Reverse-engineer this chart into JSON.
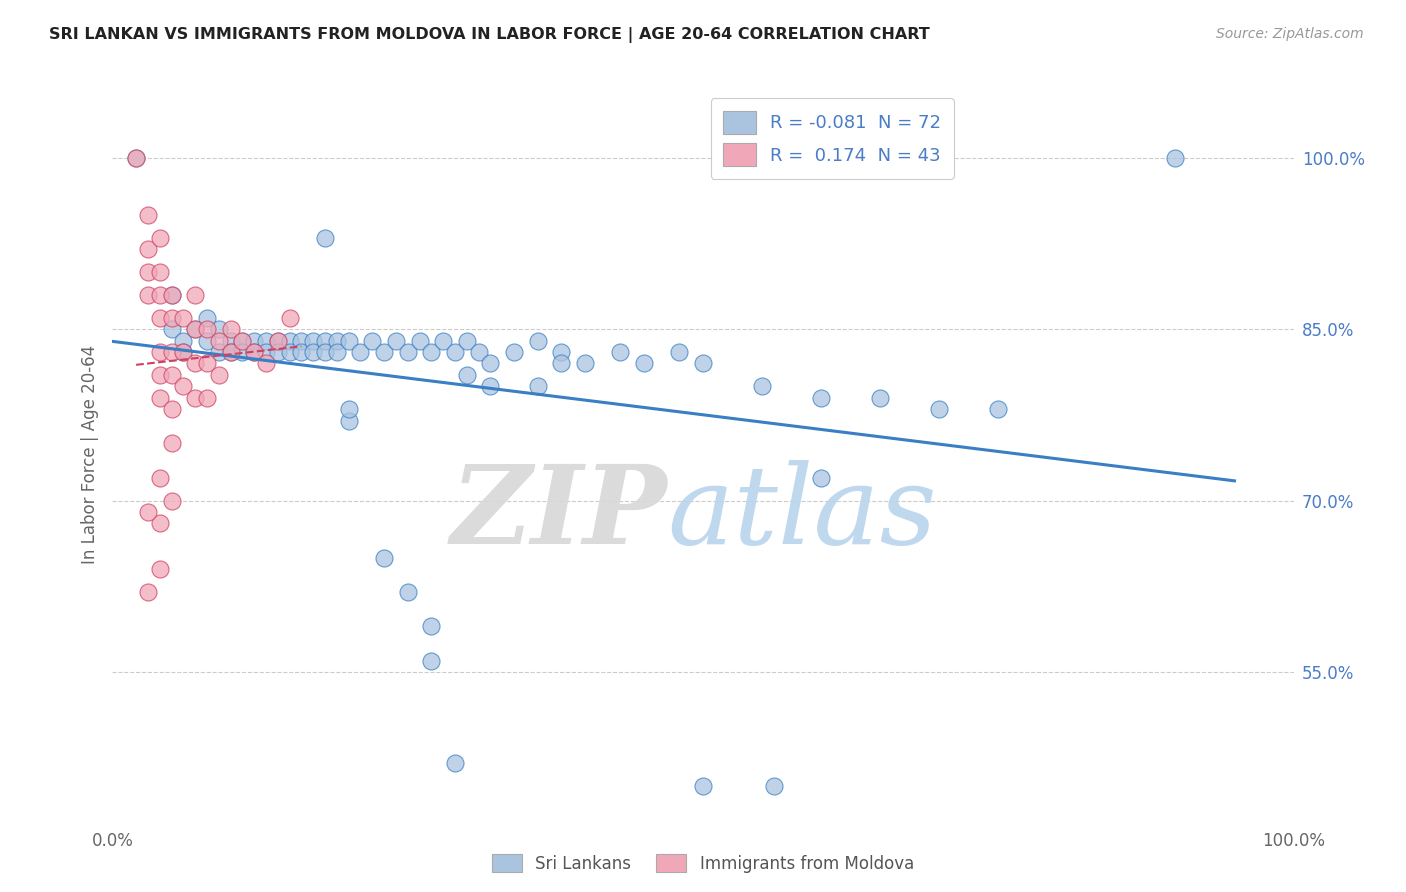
{
  "title": "SRI LANKAN VS IMMIGRANTS FROM MOLDOVA IN LABOR FORCE | AGE 20-64 CORRELATION CHART",
  "source": "Source: ZipAtlas.com",
  "ylabel": "In Labor Force | Age 20-64",
  "xlim": [
    0.0,
    1.0
  ],
  "ylim": [
    0.42,
    1.06
  ],
  "sri_lankan_color": "#aac4e0",
  "moldova_color": "#f0a8b8",
  "sri_lankan_line_color": "#3a7fc4",
  "moldova_line_color": "#d04060",
  "sri_lankan_R": "-0.081",
  "sri_lankan_N": "72",
  "moldova_R": "0.174",
  "moldova_N": "43",
  "yticks": [
    0.55,
    0.7,
    0.85,
    1.0
  ],
  "ytick_labels": [
    "55.0%",
    "70.0%",
    "85.0%",
    "100.0%"
  ],
  "sri_lankan_points": [
    [
      0.02,
      1.0
    ],
    [
      0.18,
      0.93
    ],
    [
      0.05,
      0.88
    ],
    [
      0.08,
      0.86
    ],
    [
      0.05,
      0.85
    ],
    [
      0.06,
      0.84
    ],
    [
      0.07,
      0.85
    ],
    [
      0.06,
      0.83
    ],
    [
      0.08,
      0.84
    ],
    [
      0.09,
      0.85
    ],
    [
      0.09,
      0.83
    ],
    [
      0.1,
      0.84
    ],
    [
      0.1,
      0.83
    ],
    [
      0.11,
      0.84
    ],
    [
      0.11,
      0.83
    ],
    [
      0.12,
      0.84
    ],
    [
      0.12,
      0.83
    ],
    [
      0.13,
      0.84
    ],
    [
      0.13,
      0.83
    ],
    [
      0.14,
      0.84
    ],
    [
      0.14,
      0.83
    ],
    [
      0.15,
      0.84
    ],
    [
      0.15,
      0.83
    ],
    [
      0.16,
      0.84
    ],
    [
      0.16,
      0.83
    ],
    [
      0.17,
      0.84
    ],
    [
      0.17,
      0.83
    ],
    [
      0.18,
      0.84
    ],
    [
      0.18,
      0.83
    ],
    [
      0.19,
      0.84
    ],
    [
      0.19,
      0.83
    ],
    [
      0.2,
      0.84
    ],
    [
      0.21,
      0.83
    ],
    [
      0.22,
      0.84
    ],
    [
      0.23,
      0.83
    ],
    [
      0.24,
      0.84
    ],
    [
      0.25,
      0.83
    ],
    [
      0.26,
      0.84
    ],
    [
      0.27,
      0.83
    ],
    [
      0.28,
      0.84
    ],
    [
      0.29,
      0.83
    ],
    [
      0.3,
      0.84
    ],
    [
      0.31,
      0.83
    ],
    [
      0.32,
      0.82
    ],
    [
      0.34,
      0.83
    ],
    [
      0.36,
      0.84
    ],
    [
      0.38,
      0.83
    ],
    [
      0.4,
      0.82
    ],
    [
      0.43,
      0.83
    ],
    [
      0.45,
      0.82
    ],
    [
      0.48,
      0.83
    ],
    [
      0.3,
      0.81
    ],
    [
      0.32,
      0.8
    ],
    [
      0.36,
      0.8
    ],
    [
      0.38,
      0.82
    ],
    [
      0.5,
      0.82
    ],
    [
      0.55,
      0.8
    ],
    [
      0.6,
      0.79
    ],
    [
      0.65,
      0.79
    ],
    [
      0.7,
      0.78
    ],
    [
      0.75,
      0.78
    ],
    [
      0.9,
      1.0
    ],
    [
      0.2,
      0.77
    ],
    [
      0.23,
      0.65
    ],
    [
      0.25,
      0.62
    ],
    [
      0.27,
      0.59
    ],
    [
      0.27,
      0.56
    ],
    [
      0.29,
      0.47
    ],
    [
      0.6,
      0.72
    ],
    [
      0.5,
      0.45
    ],
    [
      0.56,
      0.45
    ],
    [
      0.2,
      0.78
    ]
  ],
  "moldova_points": [
    [
      0.02,
      1.0
    ],
    [
      0.03,
      0.95
    ],
    [
      0.03,
      0.92
    ],
    [
      0.03,
      0.9
    ],
    [
      0.03,
      0.88
    ],
    [
      0.04,
      0.93
    ],
    [
      0.04,
      0.9
    ],
    [
      0.04,
      0.88
    ],
    [
      0.04,
      0.86
    ],
    [
      0.04,
      0.83
    ],
    [
      0.04,
      0.81
    ],
    [
      0.04,
      0.79
    ],
    [
      0.05,
      0.88
    ],
    [
      0.05,
      0.86
    ],
    [
      0.05,
      0.83
    ],
    [
      0.05,
      0.81
    ],
    [
      0.05,
      0.78
    ],
    [
      0.05,
      0.75
    ],
    [
      0.06,
      0.86
    ],
    [
      0.06,
      0.83
    ],
    [
      0.06,
      0.8
    ],
    [
      0.07,
      0.88
    ],
    [
      0.07,
      0.85
    ],
    [
      0.07,
      0.82
    ],
    [
      0.07,
      0.79
    ],
    [
      0.08,
      0.85
    ],
    [
      0.08,
      0.82
    ],
    [
      0.08,
      0.79
    ],
    [
      0.09,
      0.84
    ],
    [
      0.09,
      0.81
    ],
    [
      0.1,
      0.85
    ],
    [
      0.1,
      0.83
    ],
    [
      0.11,
      0.84
    ],
    [
      0.12,
      0.83
    ],
    [
      0.13,
      0.82
    ],
    [
      0.14,
      0.84
    ],
    [
      0.15,
      0.86
    ],
    [
      0.04,
      0.72
    ],
    [
      0.04,
      0.68
    ],
    [
      0.05,
      0.7
    ],
    [
      0.03,
      0.62
    ],
    [
      0.04,
      0.64
    ],
    [
      0.03,
      0.69
    ]
  ]
}
